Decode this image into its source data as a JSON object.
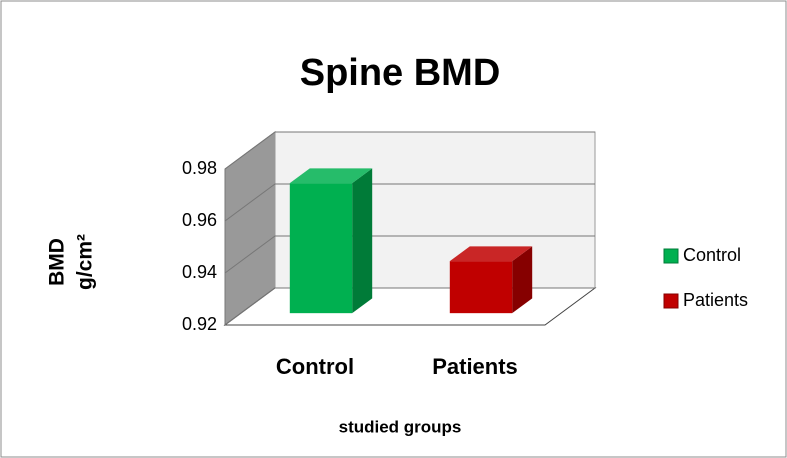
{
  "chart_data": {
    "type": "bar3d",
    "title": "Spine BMD",
    "categories": [
      "Control",
      "Patients"
    ],
    "series": [
      {
        "name": "Control",
        "color": "#00b050",
        "values": [
          0.97,
          null
        ]
      },
      {
        "name": "Patients",
        "color": "#c00000",
        "values": [
          null,
          0.94
        ]
      }
    ],
    "ylabel": [
      "BMD",
      "g/cm²"
    ],
    "xlabel": "studied groups",
    "ylim": [
      0.92,
      0.98
    ],
    "yticks": [
      0.92,
      0.94,
      0.96,
      0.98
    ],
    "grid": true,
    "legend": "right"
  }
}
